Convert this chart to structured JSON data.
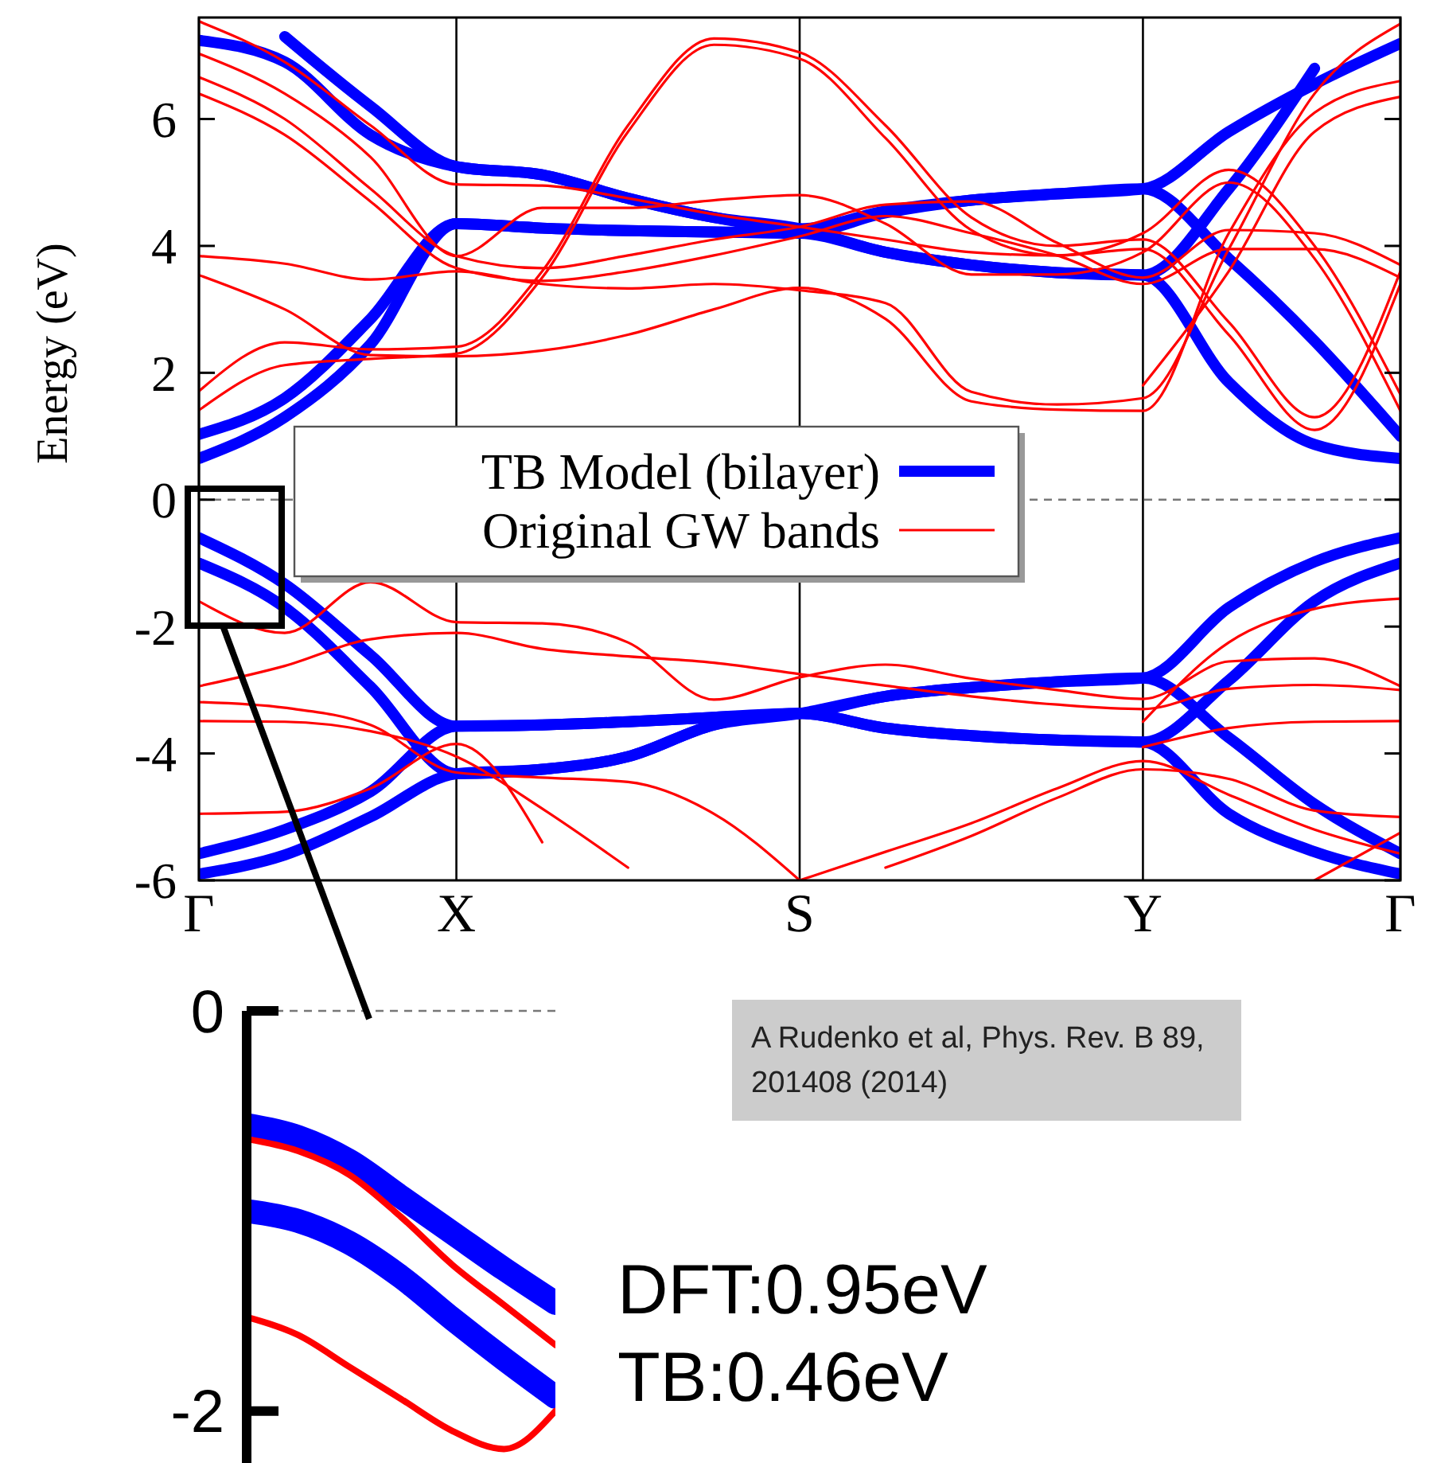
{
  "chart_data": [
    {
      "type": "line",
      "ylabel": "Energy (eV)",
      "categories": [
        "Γ",
        null,
        null,
        "X",
        null,
        null,
        null,
        "S",
        null,
        null,
        null,
        "Y",
        null,
        null,
        "Γ"
      ],
      "ylim": [
        -6,
        7.6
      ],
      "yticks": [
        -6,
        -4,
        -2,
        0,
        2,
        4,
        6
      ],
      "grid": "x",
      "legend": "center",
      "ref_lines": [
        {
          "axis": "y",
          "value": 0,
          "color": "#777777",
          "line_style": "dashed"
        }
      ],
      "annotations": [
        "A Rudenko et al, Phys. Rev. B 89, 201408 (2014)"
      ],
      "series": [
        {
          "name": "TB Model (bilayer)",
          "color": "#0000ff",
          "values": [
            0.65,
            1.3,
            2.45,
            4.35,
            4.28,
            4.24,
            4.22,
            4.2,
            3.9,
            3.7,
            3.58,
            3.54,
            1.85,
            0.87,
            0.65
          ]
        },
        {
          "color": "#0000ff",
          "values": [
            1.03,
            1.6,
            2.85,
            4.35,
            4.28,
            4.24,
            4.22,
            4.2,
            4.52,
            4.72,
            4.82,
            4.9,
            3.8,
            2.5,
            1.0
          ]
        },
        {
          "color": "#0000ff",
          "values": [
            7.24,
            6.9,
            5.75,
            5.25,
            5.12,
            4.75,
            4.45,
            4.27,
            4.55,
            4.72,
            4.82,
            4.9,
            5.8,
            6.55,
            7.19
          ]
        },
        {
          "color": "#0000ff",
          "values": [
            null,
            7.3,
            6.2,
            5.25,
            5.12,
            4.75,
            4.45,
            4.27,
            3.9,
            3.7,
            3.58,
            3.54,
            4.9,
            6.8,
            null
          ]
        },
        {
          "color": "#0000ff",
          "values": [
            -0.6,
            -1.33,
            -2.45,
            -3.57,
            -3.55,
            -3.5,
            -3.43,
            -3.37,
            -3.1,
            -2.96,
            -2.87,
            -2.81,
            -1.7,
            -0.98,
            -0.6
          ]
        },
        {
          "color": "#0000ff",
          "values": [
            -1.0,
            -1.7,
            -2.95,
            -4.32,
            -4.25,
            -4.05,
            -3.55,
            -3.37,
            -3.1,
            -2.96,
            -2.87,
            -2.81,
            -3.75,
            -4.8,
            -5.58
          ]
        },
        {
          "color": "#0000ff",
          "values": [
            -5.58,
            -5.2,
            -4.6,
            -3.57,
            -3.55,
            -3.5,
            -3.43,
            -3.37,
            -3.6,
            -3.72,
            -3.79,
            -3.82,
            -2.85,
            -1.6,
            -1.0
          ]
        },
        {
          "color": "#0000ff",
          "values": [
            -5.9,
            -5.6,
            -5.0,
            -4.32,
            -4.25,
            -4.05,
            -3.55,
            -3.37,
            -3.6,
            -3.72,
            -3.79,
            -3.82,
            -4.95,
            -5.55,
            -5.9
          ]
        },
        {
          "name": "Original GW bands",
          "color": "#ff0000",
          "values": [
            7.54,
            6.9,
            5.9,
            4.97,
            4.95,
            4.75,
            4.5,
            4.3,
            4.1,
            3.9,
            3.85,
            4.2,
            5.2,
            4.0,
            1.66
          ]
        },
        {
          "color": "#ff0000",
          "values": [
            7.03,
            6.4,
            5.4,
            3.84,
            4.6,
            4.6,
            4.72,
            4.8,
            4.35,
            3.55,
            3.55,
            3.9,
            5.0,
            3.8,
            1.4
          ]
        },
        {
          "color": "#ff0000",
          "values": [
            6.66,
            6.0,
            4.9,
            3.84,
            3.65,
            3.85,
            4.1,
            4.3,
            4.65,
            4.7,
            4.05,
            3.5,
            4.25,
            4.2,
            3.7
          ]
        },
        {
          "color": "#ff0000",
          "values": [
            6.4,
            5.75,
            4.7,
            3.65,
            3.45,
            3.6,
            3.85,
            4.15,
            4.47,
            4.2,
            3.85,
            3.4,
            3.95,
            3.95,
            3.5
          ]
        },
        {
          "color": "#ff0000",
          "values": [
            3.84,
            3.72,
            3.47,
            3.6,
            3.4,
            3.33,
            3.4,
            3.3,
            3.1,
            1.7,
            1.5,
            1.6,
            3.95,
            6.4,
            7.5
          ]
        },
        {
          "color": "#ff0000",
          "values": [
            3.54,
            3.0,
            2.28,
            2.26,
            2.35,
            2.6,
            3.0,
            3.34,
            2.85,
            1.55,
            1.42,
            1.4,
            4.2,
            6.1,
            6.6
          ]
        },
        {
          "color": "#ff0000",
          "values": [
            1.71,
            2.48,
            2.37,
            2.41,
            3.6,
            5.9,
            7.27,
            7.05,
            5.9,
            4.45,
            4.0,
            4.1,
            2.8,
            1.3,
            3.6
          ]
        },
        {
          "color": "#ff0000",
          "values": [
            1.41,
            2.12,
            2.22,
            2.3,
            3.5,
            5.8,
            7.17,
            6.95,
            5.7,
            4.25,
            3.85,
            3.95,
            2.6,
            1.1,
            3.4
          ]
        },
        {
          "color": "#ff0000",
          "values": [
            null,
            null,
            null,
            null,
            null,
            null,
            null,
            null,
            null,
            null,
            null,
            1.8,
            3.6,
            5.8,
            6.35
          ]
        },
        {
          "color": "#ff0000",
          "values": [
            -1.6,
            -2.1,
            -1.3,
            -1.93,
            -1.95,
            -2.25,
            -3.15,
            -2.8,
            -2.6,
            -2.82,
            -3.0,
            -3.14,
            -2.55,
            -2.5,
            -2.94
          ]
        },
        {
          "color": "#ff0000",
          "values": [
            -2.94,
            -2.62,
            -2.2,
            -2.1,
            -2.35,
            -2.47,
            -2.57,
            -2.75,
            -2.93,
            -3.1,
            -3.23,
            -3.3,
            -2.98,
            -2.92,
            -3.0
          ]
        },
        {
          "color": "#ff0000",
          "values": [
            -3.19,
            -3.28,
            -3.55,
            -4.3,
            -4.38,
            -4.45,
            -4.95,
            -6.0,
            null,
            null,
            null,
            null,
            null,
            null,
            null
          ]
        },
        {
          "color": "#ff0000",
          "values": [
            -3.49,
            -3.5,
            -3.65,
            -4.05,
            -4.87,
            -5.8,
            null,
            null,
            null,
            null,
            null,
            null,
            null,
            null,
            null
          ]
        },
        {
          "color": "#ff0000",
          "values": [
            -4.95,
            -4.92,
            -4.55,
            -3.85,
            -5.4,
            null,
            null,
            null,
            null,
            null,
            null,
            null,
            null,
            null,
            null
          ]
        },
        {
          "color": "#ff0000",
          "values": [
            null,
            null,
            null,
            null,
            null,
            null,
            null,
            -6.0,
            -5.55,
            -5.1,
            -4.55,
            -4.12,
            -4.65,
            -5.2,
            -5.58
          ]
        },
        {
          "color": "#ff0000",
          "values": [
            null,
            null,
            null,
            null,
            null,
            null,
            null,
            null,
            -5.8,
            -5.3,
            -4.7,
            -4.25,
            -4.4,
            -4.9,
            -5.0
          ]
        },
        {
          "color": "#ff0000",
          "values": [
            null,
            null,
            null,
            null,
            null,
            null,
            null,
            null,
            null,
            null,
            null,
            -3.9,
            -3.6,
            -3.5,
            -3.49
          ]
        },
        {
          "color": "#ff0000",
          "values": [
            null,
            null,
            null,
            null,
            null,
            null,
            null,
            null,
            null,
            null,
            null,
            -3.5,
            -2.25,
            -1.72,
            -1.56
          ]
        },
        {
          "color": "#ff0000",
          "values": [
            null,
            null,
            null,
            null,
            null,
            null,
            null,
            null,
            null,
            null,
            null,
            null,
            null,
            -6.0,
            -5.25
          ]
        }
      ]
    },
    {
      "type": "line",
      "categories": [
        null,
        null,
        null,
        null,
        null,
        null,
        null
      ],
      "ylim": [
        -2.26,
        0
      ],
      "yticks": [
        -2,
        0
      ],
      "ref_lines": [
        {
          "axis": "y",
          "value": 0,
          "color": "#777777",
          "line_style": "dashed"
        }
      ],
      "annotations": [
        "DFT:0.95eV",
        "TB:0.46eV"
      ],
      "series": [
        {
          "color": "#0000ff",
          "values": [
            -0.57,
            -0.63,
            -0.75,
            -0.93,
            -1.11,
            -1.29,
            -1.46
          ]
        },
        {
          "color": "#0000ff",
          "values": [
            -1.0,
            -1.05,
            -1.16,
            -1.33,
            -1.54,
            -1.74,
            -1.93
          ]
        },
        {
          "color": "#ff0000",
          "values": [
            -0.64,
            -0.7,
            -0.82,
            -1.03,
            -1.27,
            -1.47,
            -1.67
          ]
        },
        {
          "color": "#ff0000",
          "values": [
            -1.53,
            -1.62,
            -1.78,
            -1.94,
            -2.1,
            -2.19,
            -2.0
          ]
        }
      ]
    }
  ]
}
